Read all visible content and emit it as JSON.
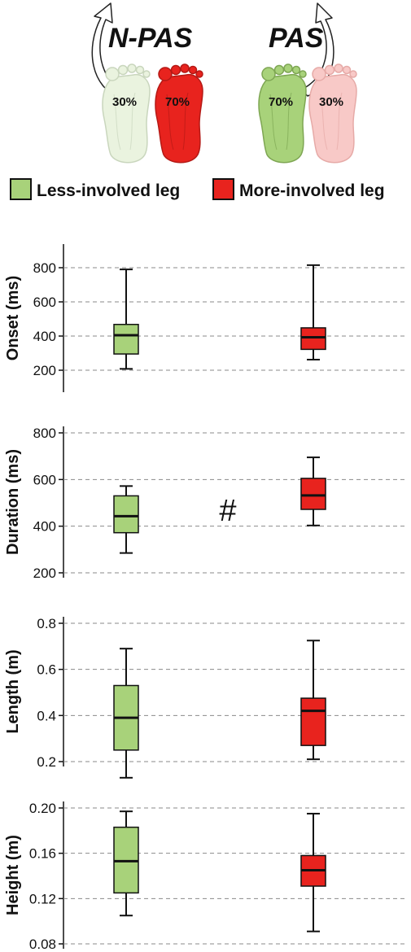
{
  "header": {
    "labels": [
      {
        "text": "N-PAS",
        "key": "npas"
      },
      {
        "text": "PAS",
        "key": "pas"
      }
    ],
    "feet": [
      {
        "label": "30%",
        "color": "#eaf3df",
        "stroke": "#c9d6bd"
      },
      {
        "label": "70%",
        "color": "#e8231e",
        "stroke": "#b51915"
      },
      {
        "label": "70%",
        "color": "#a8d27a",
        "stroke": "#7ea653"
      },
      {
        "label": "30%",
        "color": "#f8c9c7",
        "stroke": "#e6aaa7"
      }
    ]
  },
  "legend": [
    {
      "label": "Less-involved leg",
      "color": "#a8d27a"
    },
    {
      "label": "More-involved leg",
      "color": "#e8231e"
    }
  ],
  "chart_data": [
    {
      "type": "box",
      "ylabel": "Onset (ms)",
      "ylim": [
        100,
        900
      ],
      "yticks": [
        200,
        400,
        600,
        800
      ],
      "tick_labels": [
        "200",
        "400",
        "600",
        "800"
      ],
      "grid": true,
      "annotation": "",
      "series": [
        {
          "name": "Less-involved leg",
          "color": "#a8d27a",
          "min": 208,
          "q1": 295,
          "median": 405,
          "q3": 468,
          "max": 790
        },
        {
          "name": "More-involved leg",
          "color": "#e8231e",
          "min": 262,
          "q1": 322,
          "median": 393,
          "q3": 448,
          "max": 815
        }
      ]
    },
    {
      "type": "box",
      "ylabel": "Duration (ms)",
      "ylim": [
        200,
        800
      ],
      "yticks": [
        200,
        400,
        600,
        800
      ],
      "tick_labels": [
        "200",
        "400",
        "600",
        "800"
      ],
      "grid": true,
      "annotation": "#",
      "series": [
        {
          "name": "Less-involved leg",
          "color": "#a8d27a",
          "min": 285,
          "q1": 372,
          "median": 443,
          "q3": 530,
          "max": 572
        },
        {
          "name": "More-involved leg",
          "color": "#e8231e",
          "min": 403,
          "q1": 472,
          "median": 532,
          "q3": 605,
          "max": 695
        }
      ]
    },
    {
      "type": "box",
      "ylabel": "Length (m)",
      "ylim": [
        0.2,
        0.8
      ],
      "yticks": [
        0.2,
        0.4,
        0.6,
        0.8
      ],
      "tick_labels": [
        "0.2",
        "0.4",
        "0.6",
        "0.8"
      ],
      "grid": true,
      "annotation": "",
      "series": [
        {
          "name": "Less-involved leg",
          "color": "#a8d27a",
          "min": 0.13,
          "q1": 0.25,
          "median": 0.39,
          "q3": 0.53,
          "max": 0.69
        },
        {
          "name": "More-involved leg",
          "color": "#e8231e",
          "min": 0.21,
          "q1": 0.27,
          "median": 0.42,
          "q3": 0.475,
          "max": 0.725
        }
      ]
    },
    {
      "type": "box",
      "ylabel": "Height (m)",
      "ylim": [
        0.08,
        0.2
      ],
      "yticks": [
        0.08,
        0.12,
        0.16,
        0.2
      ],
      "tick_labels": [
        "0.08",
        "0.12",
        "0.16",
        "0.20"
      ],
      "grid": true,
      "annotation": "",
      "series": [
        {
          "name": "Less-involved leg",
          "color": "#a8d27a",
          "min": 0.105,
          "q1": 0.125,
          "median": 0.153,
          "q3": 0.183,
          "max": 0.197
        },
        {
          "name": "More-involved leg",
          "color": "#e8231e",
          "min": 0.091,
          "q1": 0.131,
          "median": 0.145,
          "q3": 0.158,
          "max": 0.195
        }
      ]
    }
  ]
}
